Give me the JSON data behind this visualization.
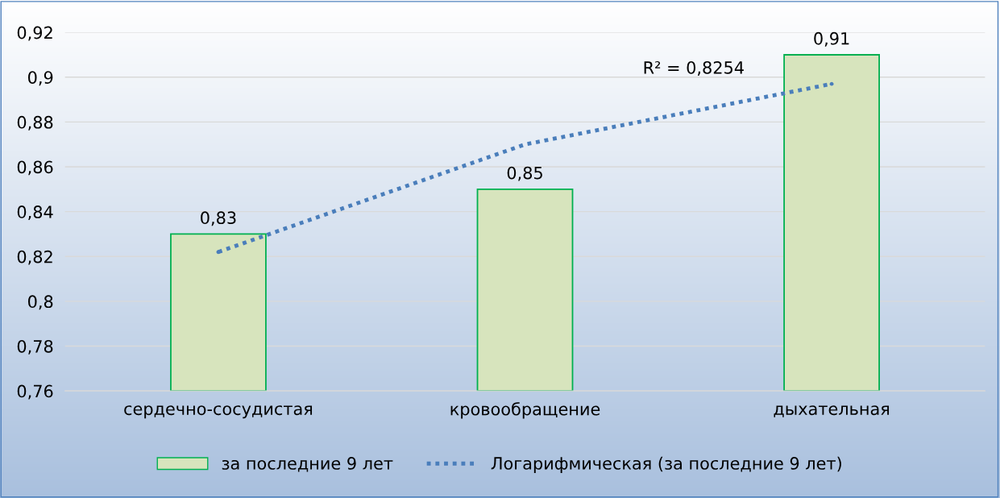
{
  "chart_data": {
    "type": "bar",
    "categories": [
      "сердечно-сосудистая",
      "кровообращение",
      "дыхательная"
    ],
    "series": [
      {
        "name": "за последние 9 лет",
        "color": "#d7e4bd",
        "values": [
          0.83,
          0.85,
          0.91
        ],
        "value_labels": [
          "0,83",
          "0,85",
          "0,91"
        ]
      },
      {
        "name": "Логарифмическая (за последние 9 лет)",
        "type": "line",
        "color": "#4a7ebb",
        "line_style": "dotted",
        "values": [
          0.822,
          0.87,
          0.897
        ]
      }
    ],
    "annotations": [
      "R² = 0,8254"
    ],
    "ylim": [
      0.76,
      0.92
    ],
    "yticks": [
      {
        "value": 0.76,
        "label": "0,76"
      },
      {
        "value": 0.78,
        "label": "0,78"
      },
      {
        "value": 0.8,
        "label": "0,8"
      },
      {
        "value": 0.82,
        "label": "0,82"
      },
      {
        "value": 0.84,
        "label": "0,84"
      },
      {
        "value": 0.86,
        "label": "0,86"
      },
      {
        "value": 0.88,
        "label": "0,88"
      },
      {
        "value": 0.9,
        "label": "0,9"
      },
      {
        "value": 0.92,
        "label": "0,92"
      }
    ],
    "grid": "y",
    "legend": "bottom"
  }
}
